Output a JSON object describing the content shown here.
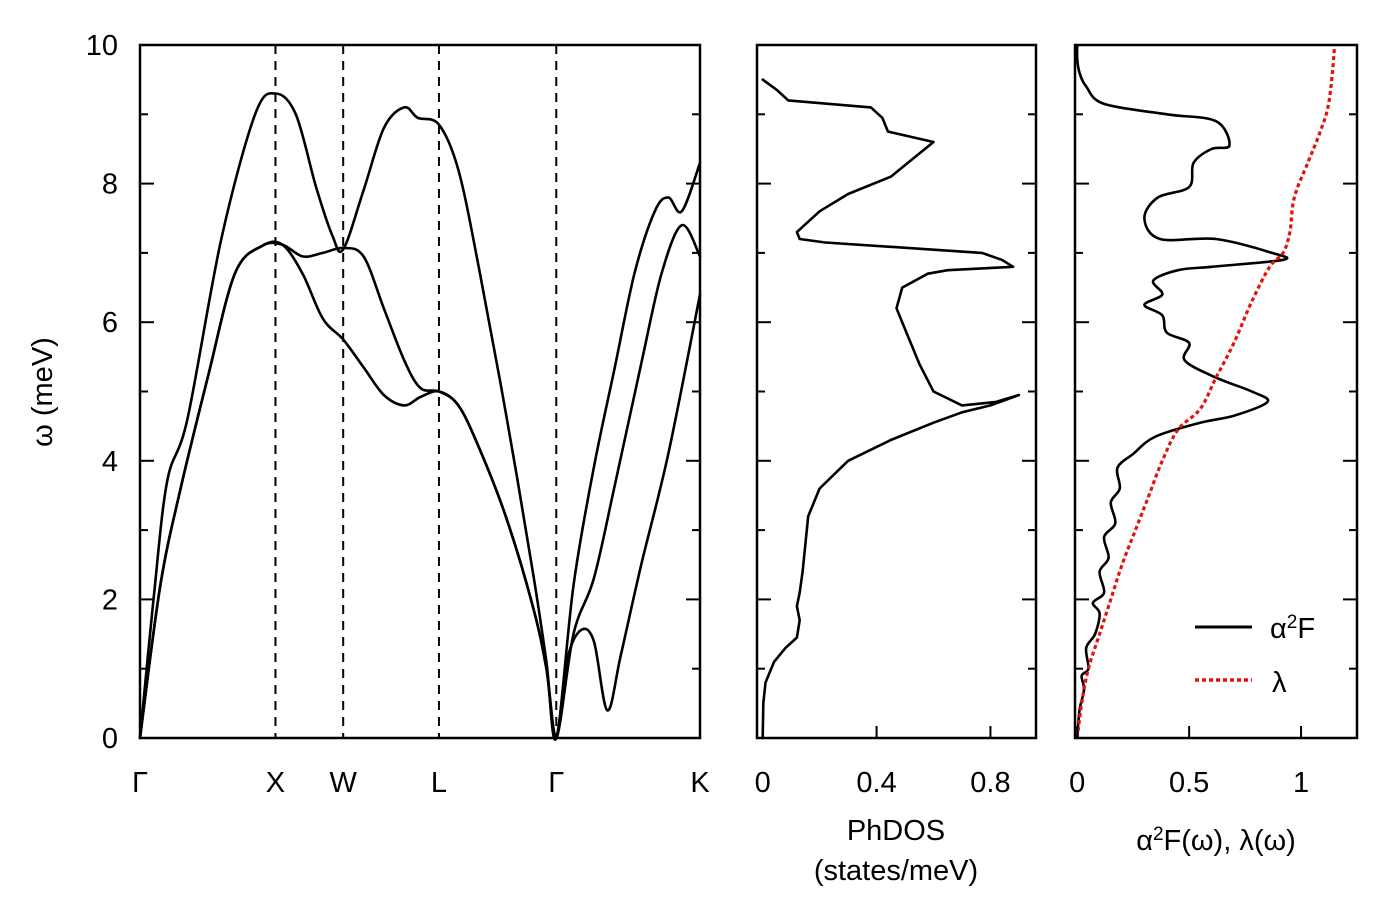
{
  "chart_data": [
    {
      "type": "line",
      "ylabel": "ω (meV)",
      "ylim": [
        0,
        10
      ],
      "yticks": [
        "0",
        "2",
        "4",
        "6",
        "8",
        "10"
      ],
      "high_symmetry_points": [
        {
          "label": "Γ",
          "k": 0
        },
        {
          "label": "X",
          "k": 1
        },
        {
          "label": "W",
          "k": 1.5
        },
        {
          "label": "L",
          "k": 2.207
        },
        {
          "label": "Γ",
          "k": 3.073
        },
        {
          "label": "K",
          "k": 4.134
        }
      ],
      "series": [
        {
          "values": [
            [
              0,
              0
            ],
            [
              0.15,
              2.2
            ],
            [
              0.3,
              3.6
            ],
            [
              0.5,
              5.2
            ],
            [
              0.7,
              6.7
            ],
            [
              0.9,
              7.1
            ],
            [
              1.05,
              7.12
            ],
            [
              1.2,
              6.7
            ],
            [
              1.35,
              6.05
            ],
            [
              1.5,
              5.75
            ],
            [
              1.65,
              5.35
            ],
            [
              1.8,
              4.95
            ],
            [
              1.95,
              4.8
            ],
            [
              2.07,
              4.92
            ],
            [
              2.207,
              5.0
            ],
            [
              2.35,
              4.8
            ],
            [
              2.5,
              4.2
            ],
            [
              2.7,
              3.2
            ],
            [
              2.9,
              1.9
            ],
            [
              3.0,
              1.0
            ],
            [
              3.073,
              0
            ],
            [
              3.15,
              1.1
            ],
            [
              3.25,
              1.55
            ],
            [
              3.35,
              1.4
            ],
            [
              3.45,
              0.4
            ],
            [
              3.55,
              1.2
            ],
            [
              3.7,
              2.5
            ],
            [
              3.9,
              4.1
            ],
            [
              4.134,
              6.4
            ]
          ]
        },
        {
          "values": [
            [
              0,
              0
            ],
            [
              0.15,
              2.2
            ],
            [
              0.3,
              3.6
            ],
            [
              0.5,
              5.2
            ],
            [
              0.7,
              6.7
            ],
            [
              0.9,
              7.1
            ],
            [
              1.05,
              7.12
            ],
            [
              1.2,
              6.95
            ],
            [
              1.35,
              7.0
            ],
            [
              1.5,
              7.07
            ],
            [
              1.65,
              6.95
            ],
            [
              1.8,
              6.2
            ],
            [
              1.95,
              5.45
            ],
            [
              2.07,
              5.05
            ],
            [
              2.207,
              5.0
            ],
            [
              2.35,
              4.8
            ],
            [
              2.5,
              4.2
            ],
            [
              2.7,
              3.2
            ],
            [
              2.9,
              1.9
            ],
            [
              3.0,
              1.0
            ],
            [
              3.073,
              0
            ],
            [
              3.2,
              1.5
            ],
            [
              3.35,
              2.3
            ],
            [
              3.5,
              3.6
            ],
            [
              3.7,
              5.4
            ],
            [
              3.85,
              6.7
            ],
            [
              4.0,
              7.4
            ],
            [
              4.134,
              6.95
            ]
          ]
        },
        {
          "values": [
            [
              0,
              0
            ],
            [
              0.1,
              2.0
            ],
            [
              0.2,
              3.7
            ],
            [
              0.35,
              4.6
            ],
            [
              0.6,
              7.2
            ],
            [
              0.85,
              9.0
            ],
            [
              1.0,
              9.3
            ],
            [
              1.15,
              9.0
            ],
            [
              1.3,
              7.95
            ],
            [
              1.42,
              7.25
            ],
            [
              1.5,
              7.05
            ],
            [
              1.65,
              7.9
            ],
            [
              1.8,
              8.8
            ],
            [
              1.95,
              9.1
            ],
            [
              2.05,
              8.95
            ],
            [
              2.207,
              8.85
            ],
            [
              2.35,
              8.2
            ],
            [
              2.5,
              6.8
            ],
            [
              2.7,
              4.7
            ],
            [
              2.9,
              2.4
            ],
            [
              3.0,
              1.1
            ],
            [
              3.073,
              0
            ],
            [
              3.2,
              2.2
            ],
            [
              3.35,
              3.9
            ],
            [
              3.5,
              5.3
            ],
            [
              3.65,
              6.7
            ],
            [
              3.8,
              7.6
            ],
            [
              3.9,
              7.8
            ],
            [
              4.0,
              7.6
            ],
            [
              4.134,
              8.3
            ]
          ]
        }
      ]
    },
    {
      "type": "line",
      "xlabel": "PhDOS (states/meV)",
      "xticks": [
        "0",
        "0.4",
        "0.8"
      ],
      "xlim": [
        -0.02,
        0.96
      ],
      "ylim": [
        0,
        10
      ],
      "series": [
        {
          "values": [
            [
              0,
              0
            ],
            [
              0.002,
              0.5
            ],
            [
              0.01,
              0.8
            ],
            [
              0.04,
              1.1
            ],
            [
              0.08,
              1.3
            ],
            [
              0.12,
              1.45
            ],
            [
              0.13,
              1.7
            ],
            [
              0.12,
              1.9
            ],
            [
              0.13,
              2.1
            ],
            [
              0.14,
              2.4
            ],
            [
              0.15,
              2.8
            ],
            [
              0.16,
              3.2
            ],
            [
              0.2,
              3.6
            ],
            [
              0.3,
              4.0
            ],
            [
              0.45,
              4.3
            ],
            [
              0.6,
              4.55
            ],
            [
              0.7,
              4.7
            ],
            [
              0.8,
              4.8
            ],
            [
              0.9,
              4.95
            ],
            [
              0.82,
              4.85
            ],
            [
              0.7,
              4.8
            ],
            [
              0.6,
              5.0
            ],
            [
              0.55,
              5.4
            ],
            [
              0.5,
              5.9
            ],
            [
              0.47,
              6.2
            ],
            [
              0.49,
              6.5
            ],
            [
              0.58,
              6.7
            ],
            [
              0.65,
              6.75
            ],
            [
              0.88,
              6.8
            ],
            [
              0.84,
              6.9
            ],
            [
              0.77,
              7.0
            ],
            [
              0.22,
              7.15
            ],
            [
              0.13,
              7.2
            ],
            [
              0.12,
              7.3
            ],
            [
              0.2,
              7.6
            ],
            [
              0.3,
              7.85
            ],
            [
              0.45,
              8.1
            ],
            [
              0.54,
              8.4
            ],
            [
              0.6,
              8.6
            ],
            [
              0.44,
              8.75
            ],
            [
              0.42,
              8.95
            ],
            [
              0.38,
              9.1
            ],
            [
              0.09,
              9.2
            ],
            [
              0.05,
              9.35
            ],
            [
              0,
              9.5
            ]
          ]
        }
      ]
    },
    {
      "type": "line",
      "xlabel": "α²F(ω), λ(ω)",
      "xticks": [
        "0",
        "0.5",
        "1"
      ],
      "xlim": [
        -0.01,
        1.25
      ],
      "ylim": [
        0,
        10
      ],
      "legend": {
        "position": "bottom-right",
        "entries": [
          {
            "label": "α²F",
            "color": "#000000",
            "style": "solid"
          },
          {
            "label": "λ",
            "color": "#e3120b",
            "style": "dotted"
          }
        ]
      },
      "series": [
        {
          "name": "α²F",
          "color": "#000000",
          "values": [
            [
              0,
              0
            ],
            [
              0.01,
              0.4
            ],
            [
              0.03,
              0.7
            ],
            [
              0.02,
              0.9
            ],
            [
              0.05,
              1.0
            ],
            [
              0.04,
              1.3
            ],
            [
              0.08,
              1.5
            ],
            [
              0.1,
              1.8
            ],
            [
              0.07,
              1.95
            ],
            [
              0.12,
              2.1
            ],
            [
              0.1,
              2.4
            ],
            [
              0.14,
              2.6
            ],
            [
              0.12,
              2.9
            ],
            [
              0.17,
              3.1
            ],
            [
              0.15,
              3.4
            ],
            [
              0.19,
              3.6
            ],
            [
              0.18,
              3.9
            ],
            [
              0.25,
              4.1
            ],
            [
              0.35,
              4.35
            ],
            [
              0.55,
              4.55
            ],
            [
              0.7,
              4.65
            ],
            [
              0.85,
              4.85
            ],
            [
              0.78,
              5.0
            ],
            [
              0.62,
              5.2
            ],
            [
              0.48,
              5.45
            ],
            [
              0.5,
              5.7
            ],
            [
              0.4,
              5.85
            ],
            [
              0.38,
              6.1
            ],
            [
              0.3,
              6.25
            ],
            [
              0.38,
              6.4
            ],
            [
              0.34,
              6.6
            ],
            [
              0.45,
              6.75
            ],
            [
              0.6,
              6.8
            ],
            [
              0.92,
              6.9
            ],
            [
              0.87,
              7.0
            ],
            [
              0.62,
              7.2
            ],
            [
              0.37,
              7.2
            ],
            [
              0.3,
              7.5
            ],
            [
              0.36,
              7.8
            ],
            [
              0.5,
              7.95
            ],
            [
              0.52,
              8.3
            ],
            [
              0.6,
              8.5
            ],
            [
              0.68,
              8.55
            ],
            [
              0.62,
              8.9
            ],
            [
              0.4,
              9.0
            ],
            [
              0.12,
              9.15
            ],
            [
              0.04,
              9.4
            ],
            [
              0.01,
              9.6
            ],
            [
              0,
              9.8
            ],
            [
              0,
              10
            ]
          ]
        },
        {
          "name": "λ",
          "color": "#e3120b",
          "values": [
            [
              0,
              0
            ],
            [
              0.02,
              0.5
            ],
            [
              0.05,
              1.0
            ],
            [
              0.1,
              1.5
            ],
            [
              0.15,
              2.0
            ],
            [
              0.2,
              2.5
            ],
            [
              0.26,
              3.0
            ],
            [
              0.32,
              3.5
            ],
            [
              0.38,
              4.0
            ],
            [
              0.45,
              4.45
            ],
            [
              0.55,
              4.75
            ],
            [
              0.62,
              5.2
            ],
            [
              0.7,
              5.7
            ],
            [
              0.78,
              6.3
            ],
            [
              0.86,
              6.8
            ],
            [
              0.92,
              7.0
            ],
            [
              0.95,
              7.3
            ],
            [
              0.97,
              7.8
            ],
            [
              1.03,
              8.3
            ],
            [
              1.08,
              8.7
            ],
            [
              1.12,
              9.1
            ],
            [
              1.14,
              9.6
            ],
            [
              1.15,
              10.0
            ]
          ]
        }
      ]
    }
  ]
}
